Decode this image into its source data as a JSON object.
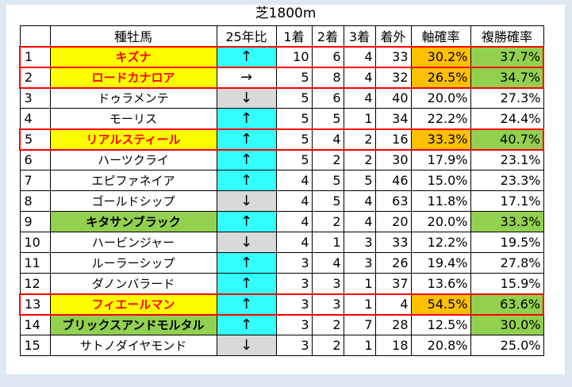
{
  "title": "芝1800m",
  "headers": [
    "",
    "種牡馬",
    "25年比",
    "1着",
    "2着",
    "3着",
    "着外",
    "軸確率",
    "複勝確率"
  ],
  "rows": [
    {
      "no": "1",
      "name": "キズナ",
      "name_hl": "yellow",
      "trend": "↑",
      "trend_dir": "up",
      "w1": "10",
      "w2": "6",
      "w3": "4",
      "out": "33",
      "axis": "30.2%",
      "axis_hl": "orange",
      "place": "37.7%",
      "place_hl": "green",
      "red_box": true
    },
    {
      "no": "2",
      "name": "ロードカナロア",
      "name_hl": "yellow",
      "trend": "→",
      "trend_dir": "flat",
      "w1": "5",
      "w2": "8",
      "w3": "4",
      "out": "32",
      "axis": "26.5%",
      "axis_hl": "orange",
      "place": "34.7%",
      "place_hl": "green",
      "red_box": true
    },
    {
      "no": "3",
      "name": "ドゥラメンテ",
      "name_hl": "",
      "trend": "↓",
      "trend_dir": "down",
      "w1": "5",
      "w2": "6",
      "w3": "4",
      "out": "40",
      "axis": "20.0%",
      "axis_hl": "",
      "place": "27.3%",
      "place_hl": "",
      "red_box": false
    },
    {
      "no": "4",
      "name": "モーリス",
      "name_hl": "",
      "trend": "↑",
      "trend_dir": "up",
      "w1": "5",
      "w2": "5",
      "w3": "1",
      "out": "34",
      "axis": "22.2%",
      "axis_hl": "",
      "place": "24.4%",
      "place_hl": "",
      "red_box": false
    },
    {
      "no": "5",
      "name": "リアルスティール",
      "name_hl": "yellow",
      "trend": "↑",
      "trend_dir": "up",
      "w1": "5",
      "w2": "4",
      "w3": "2",
      "out": "16",
      "axis": "33.3%",
      "axis_hl": "orange",
      "place": "40.7%",
      "place_hl": "green",
      "red_box": true
    },
    {
      "no": "6",
      "name": "ハーツクライ",
      "name_hl": "",
      "trend": "↑",
      "trend_dir": "up",
      "w1": "5",
      "w2": "2",
      "w3": "2",
      "out": "30",
      "axis": "17.9%",
      "axis_hl": "",
      "place": "23.1%",
      "place_hl": "",
      "red_box": false
    },
    {
      "no": "7",
      "name": "エピファネイア",
      "name_hl": "",
      "trend": "↑",
      "trend_dir": "up",
      "w1": "4",
      "w2": "5",
      "w3": "5",
      "out": "46",
      "axis": "15.0%",
      "axis_hl": "",
      "place": "23.3%",
      "place_hl": "",
      "red_box": false
    },
    {
      "no": "8",
      "name": "ゴールドシップ",
      "name_hl": "",
      "trend": "↓",
      "trend_dir": "down",
      "w1": "4",
      "w2": "5",
      "w3": "4",
      "out": "63",
      "axis": "11.8%",
      "axis_hl": "",
      "place": "17.1%",
      "place_hl": "",
      "red_box": false
    },
    {
      "no": "9",
      "name": "キタサンブラック",
      "name_hl": "green",
      "trend": "↑",
      "trend_dir": "up",
      "w1": "4",
      "w2": "2",
      "w3": "4",
      "out": "20",
      "axis": "20.0%",
      "axis_hl": "",
      "place": "33.3%",
      "place_hl": "green",
      "red_box": false
    },
    {
      "no": "10",
      "name": "ハービンジャー",
      "name_hl": "",
      "trend": "↓",
      "trend_dir": "down",
      "w1": "4",
      "w2": "1",
      "w3": "3",
      "out": "33",
      "axis": "12.2%",
      "axis_hl": "",
      "place": "19.5%",
      "place_hl": "",
      "red_box": false
    },
    {
      "no": "11",
      "name": "ルーラーシップ",
      "name_hl": "",
      "trend": "↑",
      "trend_dir": "up",
      "w1": "3",
      "w2": "4",
      "w3": "3",
      "out": "26",
      "axis": "19.4%",
      "axis_hl": "",
      "place": "27.8%",
      "place_hl": "",
      "red_box": false
    },
    {
      "no": "12",
      "name": "ダノンバラード",
      "name_hl": "",
      "trend": "↑",
      "trend_dir": "up",
      "w1": "3",
      "w2": "3",
      "w3": "1",
      "out": "37",
      "axis": "13.6%",
      "axis_hl": "",
      "place": "15.9%",
      "place_hl": "",
      "red_box": false
    },
    {
      "no": "13",
      "name": "フィエールマン",
      "name_hl": "yellow",
      "trend": "↑",
      "trend_dir": "up",
      "w1": "3",
      "w2": "3",
      "w3": "1",
      "out": "4",
      "axis": "54.5%",
      "axis_hl": "orange",
      "place": "63.6%",
      "place_hl": "green",
      "red_box": true
    },
    {
      "no": "14",
      "name": "ブリックスアンドモルタル",
      "name_hl": "green",
      "trend": "↑",
      "trend_dir": "up",
      "w1": "3",
      "w2": "2",
      "w3": "7",
      "out": "28",
      "axis": "12.5%",
      "axis_hl": "",
      "place": "30.0%",
      "place_hl": "green",
      "red_box": false
    },
    {
      "no": "15",
      "name": "サトノダイヤモンド",
      "name_hl": "",
      "trend": "↓",
      "trend_dir": "down",
      "w1": "3",
      "w2": "2",
      "w3": "1",
      "out": "18",
      "axis": "20.8%",
      "axis_hl": "",
      "place": "25.0%",
      "place_hl": "",
      "red_box": false
    }
  ]
}
